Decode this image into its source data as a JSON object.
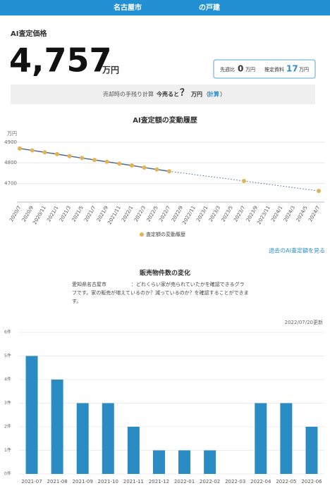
{
  "header": {
    "city": "名古屋市",
    "type": "の戸建"
  },
  "price": {
    "label": "AI査定価格",
    "value": "4,757",
    "unit": "万円"
  },
  "summary": {
    "change_label": "先週比",
    "change_value": 0,
    "change_unit": "万円",
    "ref_label": "推定資料",
    "ref_value": 17,
    "ref_unit": "万円"
  },
  "calc": {
    "label": "売却時の手残り計算",
    "prompt": "今売ると",
    "value": "？",
    "unit": "万円",
    "open": "（",
    "link": "計算",
    "close": "）"
  },
  "history_link": "過去のAI査定額を見る",
  "chart_data": [
    {
      "type": "line",
      "title": "AI査定額の変動履歴",
      "y_unit": "万円",
      "categories": [
        "2020/7",
        "2020/9",
        "2020/11",
        "2021/1",
        "2021/3",
        "2021/5",
        "2021/7",
        "2021/9",
        "2021/11",
        "2022/1",
        "2022/3",
        "2022/5",
        "2022/7",
        "2022/9",
        "2022/11",
        "2023/1",
        "2023/3",
        "2023/5",
        "2023/7",
        "2023/9",
        "2023/11",
        "2024/1",
        "2024/3",
        "2024/5",
        "2024/7"
      ],
      "series": [
        {
          "name": "査定額の変動履歴",
          "color": "#e3b355",
          "line_color": "#4f6b8f",
          "values": [
            4869,
            4860,
            4851,
            4842,
            4832,
            4823,
            4814,
            4805,
            4796,
            4787,
            4777,
            4768,
            4759,
            null,
            null,
            null,
            null,
            null,
            4712,
            null,
            null,
            null,
            null,
            null,
            4664
          ]
        }
      ],
      "ylim": [
        4610,
        4930
      ],
      "yticks": [
        4700,
        4800,
        4900
      ],
      "grid": true,
      "legend": "bottom"
    },
    {
      "type": "bar",
      "title": "販売物件数の変化",
      "description": [
        "愛知県名古屋市　　　　　：どれくらい家が売られていたかを確認できるグラ",
        "フです。家の販売が増えているのか？減っているのか？を確認することができま",
        "す。"
      ],
      "updated": "2022/07/20更新",
      "categories": [
        "2021-07",
        "2021-08",
        "2021-09",
        "2021-10",
        "2021-11",
        "2021-12",
        "2022-01",
        "2022-02",
        "2022-03",
        "2022-04",
        "2022-05",
        "2022-06"
      ],
      "values": [
        5,
        4,
        3,
        3,
        2,
        1,
        1,
        1,
        0,
        3,
        3,
        2
      ],
      "color": "#2b8cc4",
      "ylim": [
        0,
        6
      ],
      "yticks": [
        {
          "value": 0,
          "label": "0件"
        },
        {
          "value": 1,
          "label": "1件"
        },
        {
          "value": 2,
          "label": "2件"
        },
        {
          "value": 3,
          "label": "3件"
        },
        {
          "value": 4,
          "label": "4件"
        },
        {
          "value": 5,
          "label": "5件"
        },
        {
          "value": 6,
          "label": "6件"
        }
      ],
      "grid": true
    }
  ]
}
